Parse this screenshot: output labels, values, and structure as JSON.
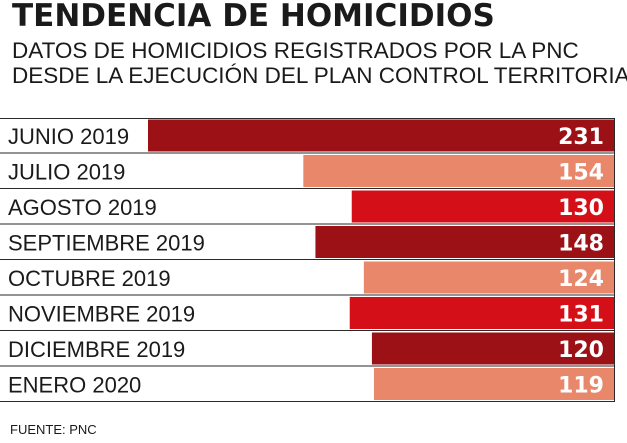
{
  "header": {
    "title": "TENDENCIA DE HOMICIDIOS",
    "subtitle_line1": "DATOS DE HOMICIDIOS REGISTRADOS POR LA PNC",
    "subtitle_line2": "DESDE LA EJECUCIÓN DEL PLAN CONTROL TERRITORIAL."
  },
  "source": "FUENTE: PNC",
  "chart_data": {
    "type": "bar",
    "orientation": "horizontal",
    "categories": [
      "JUNIO 2019",
      "JULIO 2019",
      "AGOSTO 2019",
      "SEPTIEMBRE 2019",
      "OCTUBRE 2019",
      "NOVIEMBRE 2019",
      "DICIEMBRE 2019",
      "ENERO 2020"
    ],
    "values": [
      231,
      154,
      130,
      148,
      124,
      131,
      120,
      119
    ],
    "bar_colors": [
      "#9b1116",
      "#e8876a",
      "#d50f17",
      "#9b1116",
      "#e8876a",
      "#d50f17",
      "#9b1116",
      "#e8876a"
    ],
    "value_labels_shown": true,
    "grid": false,
    "legend": "none"
  }
}
